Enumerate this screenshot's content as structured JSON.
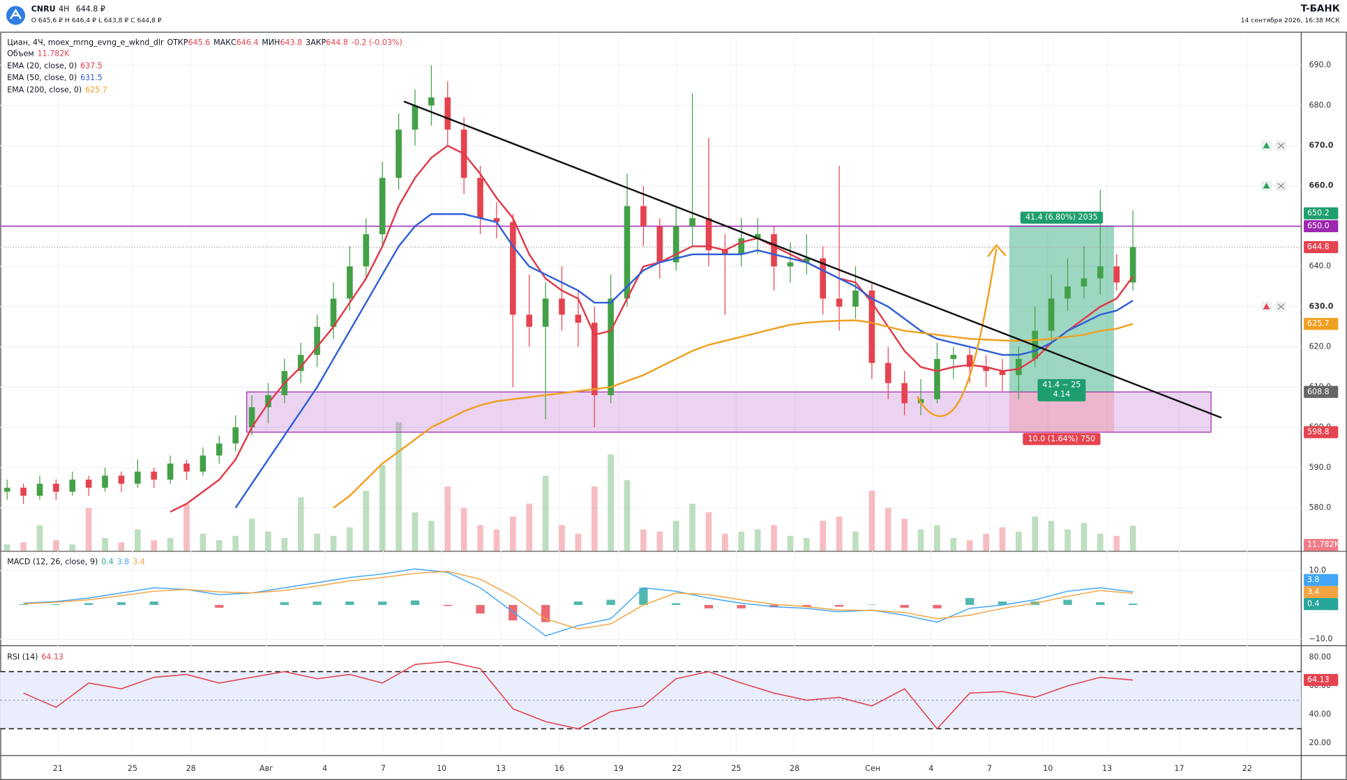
{
  "header": {
    "ticker": "CNRU",
    "interval": "4H",
    "price": "644.8 ₽",
    "ohlc": "O 645,6 ₽  H 646,4 ₽  L 643,8 ₽  C 644,8 ₽",
    "brand": "T-БАНК",
    "datetime": "14 сентября 2026, 16:38 МСК"
  },
  "chart_data": {
    "type": "candlestick",
    "legend": {
      "title": "Циан, 4Ч, moex_mrng_evng_e_wknd_dlr",
      "open_label": "ОТКР",
      "open": 645.6,
      "high_label": "МАКС",
      "high": 646.4,
      "low_label": "МИН",
      "low": 643.8,
      "close_label": "ЗАКР",
      "close": 644.8,
      "change": "-0.2 (-0.03%)"
    },
    "candles": [
      [
        584,
        587,
        582,
        585
      ],
      [
        585,
        586,
        581,
        583
      ],
      [
        583,
        588,
        582,
        586
      ],
      [
        586,
        587,
        582,
        584
      ],
      [
        584,
        589,
        583,
        587
      ],
      [
        587,
        588,
        583,
        585
      ],
      [
        585,
        590,
        584,
        588
      ],
      [
        588,
        589,
        584,
        586
      ],
      [
        586,
        592,
        585,
        589
      ],
      [
        589,
        590,
        585,
        587
      ],
      [
        587,
        593,
        586,
        591
      ],
      [
        591,
        592,
        587,
        589
      ],
      [
        589,
        595,
        588,
        593
      ],
      [
        593,
        598,
        591,
        596
      ],
      [
        596,
        603,
        594,
        600
      ],
      [
        600,
        608,
        598,
        605
      ],
      [
        605,
        611,
        601,
        608
      ],
      [
        608,
        617,
        606,
        614
      ],
      [
        614,
        621,
        611,
        618
      ],
      [
        618,
        628,
        615,
        625
      ],
      [
        625,
        636,
        622,
        632
      ],
      [
        632,
        645,
        629,
        640
      ],
      [
        640,
        652,
        637,
        648
      ],
      [
        648,
        666,
        645,
        662
      ],
      [
        662,
        678,
        659,
        674
      ],
      [
        674,
        684,
        670,
        680
      ],
      [
        680,
        690,
        675,
        682
      ],
      [
        682,
        686,
        670,
        674
      ],
      [
        674,
        677,
        658,
        662
      ],
      [
        662,
        665,
        648,
        652
      ],
      [
        652,
        656,
        647,
        651
      ],
      [
        651,
        653,
        610,
        628
      ],
      [
        628,
        638,
        620,
        625
      ],
      [
        625,
        636,
        602,
        632
      ],
      [
        632,
        640,
        624,
        628
      ],
      [
        628,
        634,
        620,
        626
      ],
      [
        626,
        630,
        600,
        608
      ],
      [
        608,
        638,
        606,
        632
      ],
      [
        632,
        663,
        630,
        655
      ],
      [
        655,
        660,
        645,
        650
      ],
      [
        650,
        652,
        637,
        641
      ],
      [
        641,
        655,
        639,
        650
      ],
      [
        650,
        683,
        645,
        652
      ],
      [
        652,
        672,
        640,
        644
      ],
      [
        644,
        648,
        628,
        643
      ],
      [
        643,
        652,
        640,
        647
      ],
      [
        647,
        652,
        643,
        648
      ],
      [
        648,
        650,
        634,
        640
      ],
      [
        640,
        646,
        636,
        641
      ],
      [
        641,
        648,
        638,
        642
      ],
      [
        642,
        645,
        628,
        632
      ],
      [
        632,
        665,
        624,
        630
      ],
      [
        630,
        640,
        627,
        634
      ],
      [
        634,
        636,
        612,
        616
      ],
      [
        616,
        620,
        607,
        611
      ],
      [
        611,
        614,
        603,
        606
      ],
      [
        606,
        612,
        603,
        607
      ],
      [
        607,
        621,
        606,
        617
      ],
      [
        617,
        620,
        612,
        618
      ],
      [
        618,
        620,
        611,
        615
      ],
      [
        615,
        618,
        610,
        614
      ],
      [
        614,
        617,
        609,
        613
      ],
      [
        613,
        620,
        607,
        617
      ],
      [
        617,
        630,
        615,
        624
      ],
      [
        624,
        638,
        621,
        632
      ],
      [
        632,
        642,
        629,
        635
      ],
      [
        635,
        645,
        632,
        637
      ],
      [
        637,
        659,
        633,
        640
      ],
      [
        640,
        643,
        634,
        636
      ],
      [
        636,
        654,
        634,
        644.8
      ]
    ],
    "up_color": "#43a047",
    "down_color": "#e5434f",
    "ylim": [
      569.3,
      698.1
    ],
    "yticks": [
      {
        "value": 580,
        "label": "580.0"
      },
      {
        "value": 590,
        "label": "590.0"
      },
      {
        "value": 600,
        "label": "600.0"
      },
      {
        "value": 610,
        "label": "610.0"
      },
      {
        "value": 620,
        "label": "620.0"
      },
      {
        "value": 630,
        "label": "630.0"
      },
      {
        "value": 640,
        "label": "640.0"
      },
      {
        "value": 650,
        "label": "650.0"
      },
      {
        "value": 660,
        "label": "660.0"
      },
      {
        "value": 670,
        "label": "670.0"
      },
      {
        "value": 680,
        "label": "680.0"
      },
      {
        "value": 690,
        "label": "690.0"
      }
    ],
    "x_labels": [
      "21",
      "25",
      "28",
      "Авг",
      "4",
      "7",
      "10",
      "13",
      "16",
      "19",
      "22",
      "25",
      "28",
      "Сен",
      "4",
      "7",
      "10",
      "13",
      "17",
      "22"
    ],
    "volume": {
      "name": "Объем",
      "values": [
        3,
        4,
        12,
        5,
        3,
        20,
        6,
        4,
        10,
        5,
        6,
        22,
        8,
        5,
        7,
        15,
        9,
        6,
        25,
        8,
        7,
        11,
        28,
        40,
        60,
        18,
        14,
        30,
        20,
        12,
        10,
        16,
        22,
        35,
        12,
        8,
        30,
        45,
        33,
        10,
        9,
        14,
        22,
        18,
        8,
        9,
        10,
        12,
        7,
        6,
        14,
        16,
        9,
        28,
        20,
        15,
        10,
        12,
        6,
        5,
        8,
        11,
        9,
        16,
        14,
        10,
        13,
        8,
        7,
        11.782
      ],
      "last_label": "11.782K"
    },
    "series": [
      {
        "name": "EMA (20, close, 0)",
        "color": "#e03a4a",
        "values": [
          null,
          null,
          null,
          null,
          null,
          null,
          null,
          null,
          null,
          null,
          579,
          581,
          584,
          587,
          592,
          600,
          606,
          611,
          615,
          620,
          625,
          631,
          637,
          645,
          655,
          662,
          667,
          670,
          668,
          663,
          657,
          652,
          643,
          637,
          634,
          632,
          623,
          624,
          632,
          640,
          641,
          643,
          645,
          645,
          644,
          646,
          647,
          645,
          643,
          641,
          639,
          637,
          636,
          631,
          625,
          619,
          615,
          614,
          615,
          615.5,
          615,
          614,
          614.5,
          617,
          621,
          624,
          627,
          630,
          632,
          637.5
        ]
      },
      {
        "name": "EMA (50, close, 0)",
        "color": "#2f5fd6",
        "values": [
          null,
          null,
          null,
          null,
          null,
          null,
          null,
          null,
          null,
          null,
          null,
          null,
          null,
          null,
          580,
          586,
          592,
          598,
          604,
          610,
          617,
          624,
          631,
          638,
          645,
          650,
          653,
          653,
          653,
          652,
          651,
          645,
          640,
          638,
          636,
          634,
          631,
          631,
          635,
          639,
          641,
          642,
          643,
          643,
          643,
          643,
          644,
          643,
          642,
          641,
          639,
          637,
          635,
          632,
          630,
          627,
          624,
          622,
          621,
          620,
          619,
          618,
          618,
          619,
          621,
          624,
          626,
          628,
          629,
          631.5
        ]
      },
      {
        "name": "EMA (200, close, 0)",
        "color": "#f0a020",
        "values": [
          null,
          null,
          null,
          null,
          null,
          null,
          null,
          null,
          null,
          null,
          null,
          null,
          null,
          null,
          null,
          null,
          null,
          null,
          null,
          null,
          580,
          583,
          587,
          591,
          594,
          597,
          600,
          602,
          604,
          605.5,
          606.5,
          607,
          607.5,
          608,
          608.5,
          609,
          609.5,
          610,
          611.5,
          613,
          615,
          617,
          619,
          620.5,
          621.5,
          622.5,
          623.5,
          624.5,
          625.5,
          626,
          626.3,
          626.5,
          626.6,
          626,
          625,
          624,
          623.5,
          623,
          622.5,
          622,
          621.8,
          621.6,
          621.5,
          621.7,
          622,
          622.5,
          623,
          624,
          624.5,
          625.7
        ]
      }
    ],
    "level": {
      "value": 650,
      "label": "650.0",
      "color": "#9c27b0"
    },
    "trendline": [
      681,
      602.4
    ],
    "zone": [
      598.8,
      608.8
    ],
    "position": {
      "target": 650.2,
      "entry": 608.8,
      "stop": 598.8,
      "profit_label": "41.4 (6.80%) 2035",
      "ratio_label": "41.4 − 25",
      "ratio": 4.14,
      "loss_label": "10.0 (1.64%) 750"
    },
    "alerts": [
      {
        "value": 670,
        "label": "670.0",
        "color": "#26a65b"
      },
      {
        "value": 660,
        "label": "660.0",
        "color": "#26a65b"
      },
      {
        "value": 630,
        "label": "630.0",
        "color": "#e5434f"
      }
    ],
    "macd": {
      "name": "MACD (12, 26, close, 9)",
      "macd": [
        0.5,
        1,
        2,
        3.5,
        5,
        4.5,
        3,
        3.5,
        5,
        6.5,
        8,
        9,
        10.5,
        9.5,
        5,
        -2,
        -9,
        -6,
        -4,
        5,
        4,
        2,
        0.5,
        -0.5,
        -1,
        -2,
        -1.5,
        -3,
        -5,
        -1,
        0,
        1.5,
        4,
        5,
        3.8
      ],
      "signal": [
        0.3,
        0.8,
        1.5,
        2.7,
        4,
        4.5,
        3.8,
        3.5,
        4.2,
        5.5,
        7,
        8,
        9.2,
        9.8,
        7.5,
        2.5,
        -4,
        -7,
        -5.5,
        0,
        3.5,
        3,
        1.5,
        0.2,
        -0.5,
        -1.5,
        -1.6,
        -2.2,
        -4,
        -3,
        -1,
        0.5,
        2.5,
        4.2,
        3.4
      ],
      "hist": [
        0.2,
        0.2,
        0.5,
        0.8,
        1,
        0,
        -0.8,
        0,
        0.8,
        1,
        1,
        1,
        1.3,
        -0.3,
        -2.5,
        -4.5,
        -5,
        1,
        1.5,
        5,
        0.5,
        -1,
        -1,
        -0.7,
        -0.5,
        -0.5,
        0.1,
        -0.8,
        -1,
        2,
        1,
        1,
        1.5,
        0.8,
        0.4
      ],
      "ylim": [
        -11.75,
        15
      ],
      "yticks": [
        {
          "value": 10,
          "label": "10.0"
        },
        {
          "value": -10,
          "label": "−10.0"
        }
      ],
      "macd_color": "#42a5f5",
      "signal_color": "#f4a340",
      "hist_up": "#26a69a",
      "hist_down": "#e5434f"
    },
    "rsi": {
      "name": "RSI (14)",
      "values": [
        55,
        45,
        62,
        58,
        66,
        68,
        62,
        66,
        70,
        65,
        68,
        62,
        75,
        77,
        72,
        44,
        35,
        30,
        42,
        46,
        65,
        70,
        62,
        55,
        50,
        52,
        46,
        58,
        30,
        55,
        56,
        52,
        60,
        66,
        64.13
      ],
      "ylim": [
        11.6,
        86.6
      ],
      "yticks": [
        {
          "value": 80,
          "label": "80.00"
        },
        {
          "value": 60,
          "label": "60.00"
        },
        {
          "value": 40,
          "label": "40.00"
        },
        {
          "value": 20,
          "label": "20.00"
        }
      ],
      "bands": [
        30,
        70
      ],
      "midline": 50,
      "color": "#e5434f"
    }
  }
}
